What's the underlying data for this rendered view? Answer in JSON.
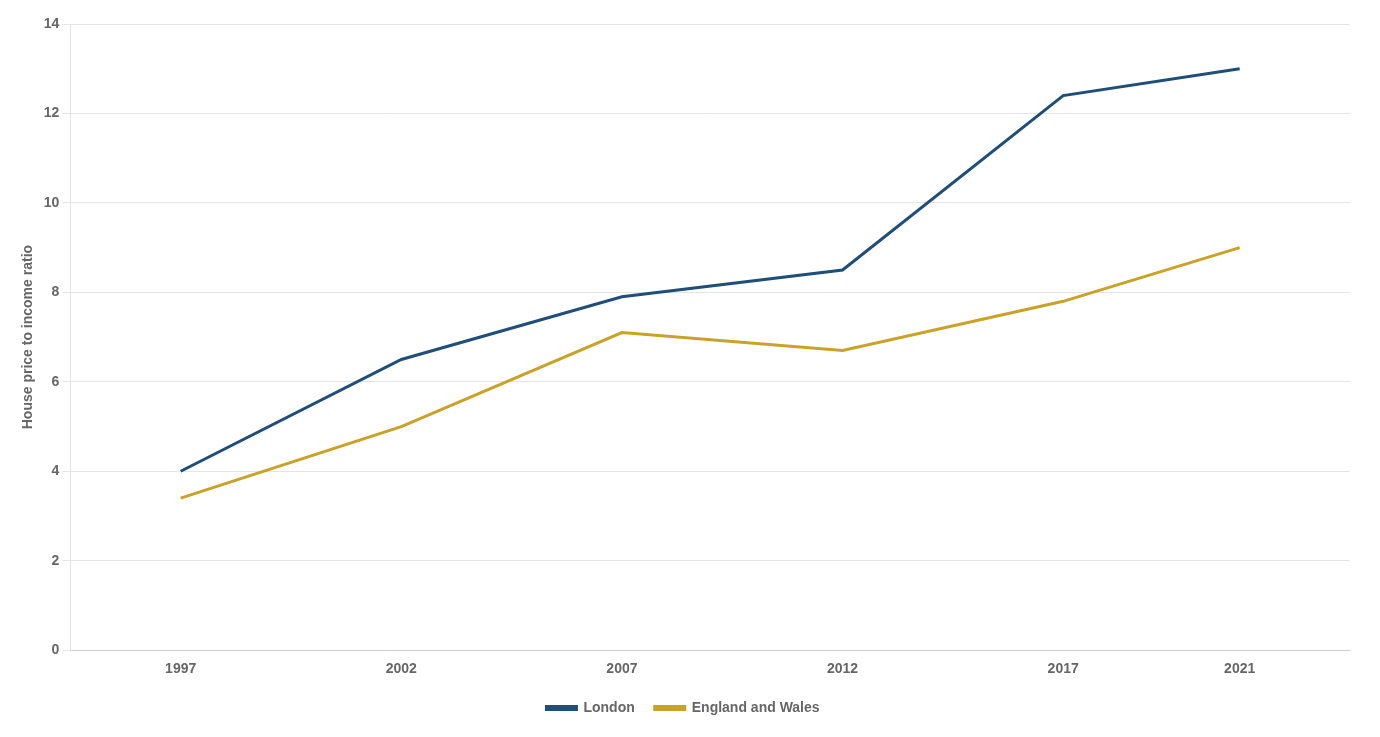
{
  "chart_data": {
    "type": "line",
    "x": [
      1997,
      2002,
      2007,
      2012,
      2017,
      2021
    ],
    "series": [
      {
        "name": "London",
        "color": "#1f4e79",
        "values": [
          4.0,
          6.5,
          7.9,
          8.5,
          12.4,
          13.0
        ]
      },
      {
        "name": "England and Wales",
        "color": "#c9a227",
        "values": [
          3.4,
          5.0,
          7.1,
          6.7,
          7.8,
          9.0
        ]
      }
    ],
    "ylabel": "House price to income ratio",
    "xlim": [
      1994.5,
      2023.5
    ],
    "xticks": [
      1997,
      2002,
      2007,
      2012,
      2017,
      2021
    ],
    "ylim": [
      0,
      14
    ],
    "yticks": [
      0,
      2,
      4,
      6,
      8,
      10,
      12,
      14
    ],
    "grid": "y",
    "legend": "bottom"
  }
}
